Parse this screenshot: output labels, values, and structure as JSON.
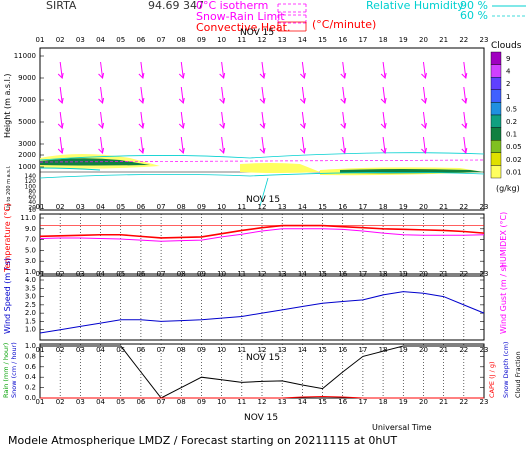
{
  "header": {
    "station": "SIRTA",
    "coords": "94.69",
    "coords_suffix": "347",
    "legend": [
      {
        "label": "0°C isotherm",
        "color": "#ff00ff",
        "line": "dashed"
      },
      {
        "label": "Snow-Rain Limit",
        "color": "#ff00ff",
        "line": "dashed"
      },
      {
        "label": "Convective Heat.",
        "color": "#ff0000",
        "line": "solid"
      }
    ],
    "unit_note": "(°C/minute)",
    "humidity_title": "Relative Humidity",
    "humidity_levels": [
      "90 %",
      "60 %"
    ],
    "humidity_color": "#00e0e0"
  },
  "hours": [
    "01",
    "02",
    "03",
    "04",
    "05",
    "06",
    "07",
    "08",
    "09",
    "10",
    "11",
    "12",
    "13",
    "14",
    "15",
    "16",
    "17",
    "18",
    "19",
    "20",
    "21",
    "22",
    "23"
  ],
  "date_label": "NOV 15",
  "footer": {
    "universal_time": "Universal Time",
    "caption": "Modele Atmospherique LMDZ / Forecast starting on 20211115 at 0hUT"
  },
  "clouds": {
    "title": "Clouds",
    "unit": "(g/kg)",
    "levels": [
      "9",
      "4",
      "2",
      "1",
      "0.5",
      "0.2",
      "0.1",
      "0.05",
      "0.02",
      "0.01"
    ],
    "colors": [
      "#a000c0",
      "#d040ff",
      "#6040ff",
      "#4060ff",
      "#2090e0",
      "#10a080",
      "#108040",
      "#80c020",
      "#e0e000",
      "#ffff60"
    ]
  },
  "panel_labels": {
    "height": "Height (m a.s.l.)",
    "height_lower": "Up to 200 m a.s.l.",
    "temperature": "Temperature (°C)",
    "humidex": "HUMIDEX (°C)",
    "wind_speed": "Wind Speed (m / s)",
    "wind_gust": "Wind Gust (m / s)",
    "rain": "Rain (mm / hour)",
    "snow": "Snow (cm / hour)",
    "cape": "CAPE (J / g)",
    "snow_depth": "Snow Depth (cm)",
    "cloud_fraction": "Cloud Fraction"
  },
  "chart_data": [
    {
      "type": "heatmap",
      "name_hint": "height-panel",
      "ylabel": "Height (m a.s.l.)",
      "yticks_upper": [
        1000,
        2000,
        3000,
        5000,
        7000,
        9000,
        11000
      ],
      "yticks_lower": [
        10,
        20,
        40,
        60,
        80,
        100,
        120,
        140
      ],
      "wind_barbs_hours": [
        "02",
        "04",
        "06",
        "08",
        "10",
        "12",
        "14",
        "16",
        "18",
        "20",
        "22"
      ]
    },
    {
      "type": "line",
      "name_hint": "temperature",
      "x": [
        "01",
        "02",
        "03",
        "04",
        "05",
        "06",
        "07",
        "08",
        "09",
        "10",
        "11",
        "12",
        "13",
        "14",
        "15",
        "16",
        "17",
        "18",
        "19",
        "20",
        "21",
        "22",
        "23"
      ],
      "ylabel": "Temperature (°C)",
      "ylabel_right": "HUMIDEX (°C)",
      "ylim": [
        1.0,
        11.0
      ],
      "yticks": [
        1.0,
        3.0,
        5.0,
        7.0,
        9.0,
        11.0
      ],
      "series": [
        {
          "name": "Temperature",
          "color": "#ff0000",
          "values": [
            7.6,
            7.7,
            7.8,
            7.9,
            7.9,
            7.6,
            7.3,
            7.4,
            7.5,
            8.1,
            8.7,
            9.2,
            9.6,
            9.6,
            9.6,
            9.4,
            9.2,
            9.0,
            8.9,
            8.8,
            8.7,
            8.5,
            8.2
          ]
        },
        {
          "name": "HUMIDEX",
          "color": "#ff00ff",
          "values": [
            7.2,
            7.3,
            7.3,
            7.2,
            7.1,
            6.9,
            6.7,
            6.8,
            6.9,
            7.5,
            8.0,
            8.6,
            9.0,
            9.0,
            9.0,
            8.9,
            8.6,
            8.2,
            7.9,
            7.8,
            7.8,
            7.8,
            7.9
          ]
        }
      ],
      "reference_lines": [
        {
          "color": "#ff0000",
          "value": 9.6
        }
      ]
    },
    {
      "type": "line",
      "name_hint": "wind",
      "x": [
        "01",
        "02",
        "03",
        "04",
        "05",
        "06",
        "07",
        "08",
        "09",
        "10",
        "11",
        "12",
        "13",
        "14",
        "15",
        "16",
        "17",
        "18",
        "19",
        "20",
        "21",
        "22",
        "23"
      ],
      "ylabel": "Wind Speed (m / s)",
      "ylabel_right": "Wind Gust (m / s)",
      "ylim": [
        0.5,
        4.0
      ],
      "yticks": [
        1.0,
        1.5,
        2.0,
        2.5,
        3.0,
        3.5,
        4.0
      ],
      "series": [
        {
          "name": "Wind Speed",
          "color": "#0000cc",
          "values": [
            0.8,
            1.0,
            1.2,
            1.4,
            1.6,
            1.6,
            1.5,
            1.55,
            1.6,
            1.7,
            1.8,
            2.0,
            2.2,
            2.4,
            2.6,
            2.7,
            2.8,
            3.1,
            3.3,
            3.2,
            3.0,
            2.5,
            2.0
          ]
        }
      ]
    },
    {
      "type": "line",
      "name_hint": "rain",
      "x": [
        "01",
        "02",
        "03",
        "04",
        "05",
        "06",
        "07",
        "08",
        "09",
        "10",
        "11",
        "12",
        "13",
        "14",
        "15",
        "16",
        "17",
        "18",
        "19",
        "20",
        "21",
        "22",
        "23"
      ],
      "ylabel": "Rain (mm / hour)",
      "ylim": [
        0,
        1.0
      ],
      "yticks": [
        0.0,
        0.2,
        0.4,
        0.6,
        0.8,
        1.0
      ],
      "series": [
        {
          "name": "Cloud Fraction",
          "color": "#000000",
          "values": [
            1.0,
            1.0,
            1.0,
            1.0,
            1.0,
            0.5,
            0.0,
            0.2,
            0.4,
            0.35,
            0.3,
            0.32,
            0.33,
            0.25,
            0.18,
            0.5,
            0.8,
            0.9,
            1.0,
            1.0,
            1.0,
            1.0,
            1.0
          ]
        },
        {
          "name": "CAPE",
          "color": "#ff0000",
          "values": [
            0,
            0,
            0,
            0,
            0,
            0,
            0,
            0,
            0,
            0,
            0,
            0,
            0,
            0.02,
            0.03,
            0.02,
            0,
            0,
            0,
            0,
            0,
            0,
            0
          ]
        }
      ]
    }
  ]
}
